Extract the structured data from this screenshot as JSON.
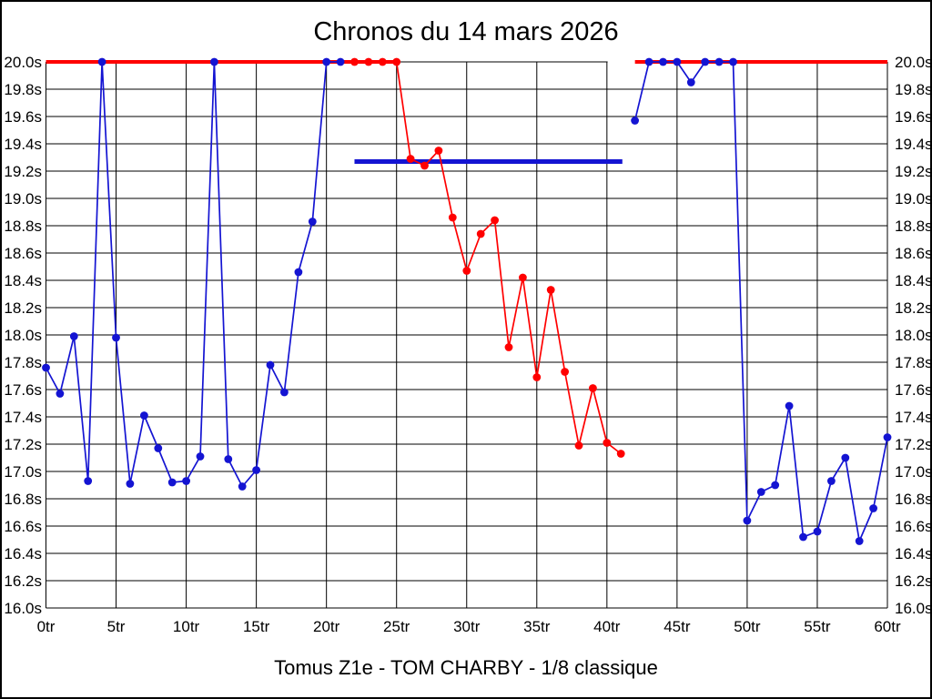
{
  "title": "Chronos du 14 mars 2026",
  "footer": "Tomus Z1e - TOM CHARBY - 1/8 classique",
  "colors": {
    "blue": "#1414d2",
    "red": "#ff0000",
    "grid": "#000000",
    "background": "#ffffff"
  },
  "chart_data": {
    "type": "line",
    "title": "Chronos du 14 mars 2026",
    "subtitle": "Tomus Z1e - TOM CHARBY - 1/8 classique",
    "x_unit": "tr",
    "y_unit": "s",
    "xlim": [
      0,
      60
    ],
    "ylim": [
      16.0,
      20.0
    ],
    "grid": true,
    "x_ticks": [
      "0tr",
      "5tr",
      "10tr",
      "15tr",
      "20tr",
      "25tr",
      "30tr",
      "35tr",
      "40tr",
      "45tr",
      "50tr",
      "55tr",
      "60tr"
    ],
    "x_tick_values": [
      0,
      5,
      10,
      15,
      20,
      25,
      30,
      35,
      40,
      45,
      50,
      55,
      60
    ],
    "y_ticks": [
      "20.0s",
      "19.8s",
      "19.6s",
      "19.4s",
      "19.2s",
      "19.0s",
      "18.8s",
      "18.6s",
      "18.4s",
      "18.2s",
      "18.0s",
      "17.8s",
      "17.6s",
      "17.4s",
      "17.2s",
      "17.0s",
      "16.8s",
      "16.6s",
      "16.4s",
      "16.2s",
      "16.0s"
    ],
    "y_tick_values": [
      20.0,
      19.8,
      19.6,
      19.4,
      19.2,
      19.0,
      18.8,
      18.6,
      18.4,
      18.2,
      18.0,
      17.8,
      17.6,
      17.4,
      17.2,
      17.0,
      16.8,
      16.6,
      16.4,
      16.2,
      16.0
    ],
    "series": [
      {
        "name": "blue_early_laps",
        "color": "blue",
        "x": [
          0,
          1,
          2,
          3,
          4,
          5,
          6,
          7,
          8,
          9,
          10,
          11,
          12,
          13,
          14,
          15,
          16,
          17,
          18,
          19,
          20,
          21
        ],
        "values": [
          17.76,
          17.57,
          17.99,
          16.93,
          20.0,
          17.98,
          16.91,
          17.41,
          17.17,
          16.92,
          16.93,
          17.11,
          20.0,
          17.09,
          16.89,
          17.01,
          17.78,
          17.58,
          18.46,
          18.83,
          20.0,
          20.0
        ]
      },
      {
        "name": "red_mid_laps",
        "color": "red",
        "x": [
          22,
          23,
          24,
          25,
          26,
          27,
          28,
          29,
          30,
          31,
          32,
          33,
          34,
          35,
          36,
          37,
          38,
          39,
          40,
          41
        ],
        "values": [
          20.0,
          20.0,
          20.0,
          20.0,
          19.29,
          19.24,
          19.35,
          18.86,
          18.47,
          18.74,
          18.84,
          17.91,
          18.42,
          17.69,
          18.33,
          17.73,
          17.19,
          17.61,
          17.21,
          17.13
        ]
      },
      {
        "name": "blue_late_laps",
        "color": "blue",
        "x": [
          42,
          43,
          44,
          45,
          46,
          47,
          48,
          49,
          50,
          51,
          52,
          53,
          54,
          55,
          56,
          57,
          58,
          59,
          60
        ],
        "values": [
          19.57,
          20.0,
          20.0,
          20.0,
          19.85,
          20.0,
          20.0,
          20.0,
          16.64,
          16.85,
          16.9,
          17.48,
          16.52,
          16.56,
          16.93,
          17.1,
          16.49,
          16.73,
          17.25
        ]
      }
    ],
    "reference_lines": [
      {
        "name": "red-cap-left",
        "color": "red",
        "y": 20.0,
        "x_start": 0,
        "x_end": 25.2,
        "width": 4
      },
      {
        "name": "top-grid-segment",
        "color": "grid",
        "y": 20.0,
        "x_start": 25.2,
        "x_end": 40.05,
        "width": 1
      },
      {
        "name": "red-cap-right",
        "color": "red",
        "y": 20.0,
        "x_start": 42.0,
        "x_end": 60.0,
        "width": 4
      },
      {
        "name": "blue-average-line",
        "color": "blue",
        "y": 19.27,
        "x_start": 22.0,
        "x_end": 41.1,
        "width": 5
      }
    ]
  }
}
